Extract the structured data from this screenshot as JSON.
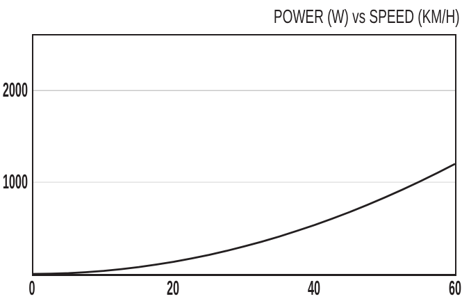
{
  "chart_data": {
    "type": "line",
    "title": "POWER (W) vs SPEED (KM/H)",
    "xlabel": "",
    "ylabel": "",
    "x": [
      0,
      2.5,
      5,
      7.5,
      10,
      12.5,
      15,
      17.5,
      20,
      22.5,
      25,
      27.5,
      30,
      32.5,
      35,
      37.5,
      40,
      42.5,
      45,
      47.5,
      50,
      52.5,
      55,
      57.5,
      60
    ],
    "series": [
      {
        "name": "power",
        "values": [
          0,
          2,
          8,
          19,
          33,
          52,
          75,
          102,
          133,
          169,
          208,
          252,
          300,
          352,
          408,
          469,
          533,
          602,
          675,
          752,
          833,
          919,
          1008,
          1102,
          1200
        ]
      }
    ],
    "xlim": [
      0,
      60
    ],
    "ylim": [
      0,
      2600
    ],
    "xticks": [
      0,
      20,
      40,
      60
    ],
    "xtick_labels": [
      "0",
      "20",
      "40",
      "60"
    ],
    "yticks": [
      1000,
      2000
    ],
    "ytick_labels": [
      "1000",
      "2000"
    ],
    "grid": "horizontal-only",
    "legend": "none"
  },
  "colors": {
    "background": "#ffffff",
    "ink": "#231f20",
    "line": "#231f20",
    "border": "#231f20",
    "gridline_colors": {
      "1000": "#e2e2e2",
      "2000": "#c9c9c9"
    }
  }
}
